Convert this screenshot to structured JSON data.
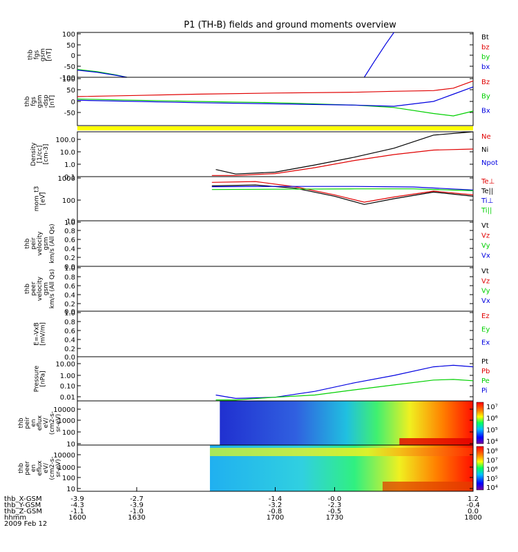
{
  "title": "P1 (TH-B) fields and ground moments overview",
  "colors": {
    "black": "#000000",
    "red": "#e00000",
    "green": "#00d000",
    "blue": "#0000e0",
    "yellow": "#ffff00"
  },
  "chart_data": [
    {
      "type": "line",
      "id": "p1",
      "ylabel": [
        "thb",
        "fgs",
        "gsm",
        "[nT]"
      ],
      "yticks": [
        "100",
        "50",
        "0",
        "-50",
        "-100"
      ],
      "ylim": [
        -100,
        100
      ],
      "legend": [
        {
          "label": "Bt",
          "color": "black"
        },
        {
          "label": "bz",
          "color": "red"
        },
        {
          "label": "by",
          "color": "green"
        },
        {
          "label": "bx",
          "color": "blue"
        }
      ],
      "series": [
        {
          "name": "by",
          "color": "green",
          "x": [
            1600,
            1610,
            1620,
            1625
          ],
          "y": [
            -65,
            -75,
            -90,
            -100
          ]
        },
        {
          "name": "bx",
          "color": "blue",
          "x": [
            1600,
            1610,
            1620,
            1625
          ],
          "y": [
            -68,
            -78,
            -92,
            -100
          ]
        },
        {
          "name": "bx",
          "color": "blue",
          "x": [
            1745,
            1750,
            1756,
            1760
          ],
          "y": [
            -100,
            -30,
            50,
            100
          ]
        }
      ]
    },
    {
      "type": "line",
      "id": "p2",
      "ylabel": [
        "thb",
        "fgs",
        "gsm",
        "-dsp",
        "[nT]"
      ],
      "yticks": [
        "100",
        "50",
        "0",
        "-50"
      ],
      "ylim": [
        -100,
        100
      ],
      "legend": [
        {
          "label": "Bz",
          "color": "red"
        },
        {
          "label": "By",
          "color": "green"
        },
        {
          "label": "Bx",
          "color": "blue"
        }
      ],
      "series": [
        {
          "name": "Bz",
          "color": "red",
          "x": [
            1600,
            1630,
            1660,
            1700,
            1740,
            1760,
            1780,
            1790,
            1800
          ],
          "y": [
            20,
            25,
            30,
            35,
            38,
            42,
            45,
            55,
            85
          ]
        },
        {
          "name": "By",
          "color": "green",
          "x": [
            1600,
            1630,
            1660,
            1700,
            1740,
            1760,
            1780,
            1790,
            1800
          ],
          "y": [
            10,
            5,
            0,
            -5,
            -15,
            -25,
            -50,
            -60,
            -40
          ]
        },
        {
          "name": "Bx",
          "color": "blue",
          "x": [
            1600,
            1630,
            1660,
            1700,
            1740,
            1760,
            1780,
            1790,
            1800
          ],
          "y": [
            5,
            0,
            -5,
            -10,
            -15,
            -20,
            0,
            30,
            60
          ]
        }
      ]
    },
    {
      "type": "line",
      "id": "p3",
      "log": true,
      "ylabel": [
        "Density",
        "[1/cc]",
        "[cm-3]"
      ],
      "yticks": [
        "100.0",
        "10.0",
        "1.0",
        "0.1"
      ],
      "ylim": [
        0.1,
        100
      ],
      "legend": [
        {
          "label": "Ne",
          "color": "red"
        },
        {
          "label": "Ni",
          "color": "black"
        },
        {
          "label": "Npot",
          "color": "blue"
        }
      ],
      "series": [
        {
          "name": "Ni",
          "color": "black",
          "x": [
            1670,
            1680,
            1700,
            1720,
            1740,
            1760,
            1780,
            1800
          ],
          "y": [
            0.3,
            0.15,
            0.2,
            0.6,
            2,
            8,
            60,
            110
          ]
        },
        {
          "name": "Ne",
          "color": "red",
          "x": [
            1668,
            1680,
            1700,
            1720,
            1740,
            1760,
            1780,
            1800
          ],
          "y": [
            0.12,
            0.12,
            0.16,
            0.4,
            1.2,
            3,
            6,
            7
          ]
        }
      ]
    },
    {
      "type": "line",
      "id": "p4",
      "log": true,
      "ylabel": [
        "mom_t3",
        "[eV]"
      ],
      "yticks": [
        "1000",
        "100",
        "10"
      ],
      "ylim": [
        10,
        1000
      ],
      "legend": [
        {
          "label": "Te⊥",
          "color": "red"
        },
        {
          "label": "Te||",
          "color": "black"
        },
        {
          "label": "Ti⊥",
          "color": "blue"
        },
        {
          "label": "Ti||",
          "color": "green"
        }
      ],
      "series": [
        {
          "name": "Te⊥",
          "color": "red",
          "x": [
            1668,
            1690,
            1710,
            1730,
            1745,
            1760,
            1780,
            1800
          ],
          "y": [
            550,
            600,
            350,
            150,
            70,
            120,
            220,
            150
          ]
        },
        {
          "name": "Te||",
          "color": "black",
          "x": [
            1668,
            1690,
            1710,
            1730,
            1745,
            1760,
            1780,
            1800
          ],
          "y": [
            380,
            420,
            300,
            130,
            55,
            100,
            200,
            130
          ]
        },
        {
          "name": "Ti⊥",
          "color": "blue",
          "x": [
            1668,
            1700,
            1740,
            1770,
            1800
          ],
          "y": [
            350,
            360,
            360,
            340,
            250
          ]
        },
        {
          "name": "Ti||",
          "color": "green",
          "x": [
            1668,
            1700,
            1740,
            1770,
            1800
          ],
          "y": [
            260,
            270,
            280,
            280,
            230
          ]
        }
      ]
    },
    {
      "type": "line",
      "id": "p5",
      "ylabel": [
        "thb",
        "peir",
        "velocity",
        "gsm",
        "km/s (All Qs)"
      ],
      "yticks": [
        "1.0",
        "0.8",
        "0.6",
        "0.4",
        "0.2",
        "0.0"
      ],
      "ylim": [
        0,
        1
      ],
      "legend": [
        {
          "label": "Vt",
          "color": "black"
        },
        {
          "label": "Vz",
          "color": "red"
        },
        {
          "label": "Vy",
          "color": "green"
        },
        {
          "label": "Vx",
          "color": "blue"
        }
      ],
      "series": []
    },
    {
      "type": "line",
      "id": "p6",
      "ylabel": [
        "thb",
        "peer",
        "velocity",
        "gsm",
        "km/s (All Qs)"
      ],
      "yticks": [
        "1.0",
        "0.8",
        "0.6",
        "0.4",
        "0.2",
        "0.0"
      ],
      "ylim": [
        0,
        1
      ],
      "legend": [
        {
          "label": "Vt",
          "color": "black"
        },
        {
          "label": "Vz",
          "color": "red"
        },
        {
          "label": "Vy",
          "color": "green"
        },
        {
          "label": "Vx",
          "color": "blue"
        }
      ],
      "series": []
    },
    {
      "type": "line",
      "id": "p7",
      "ylabel": [
        "E=-VxB",
        "[mV/m]"
      ],
      "yticks": [
        "1.0",
        "0.8",
        "0.6",
        "0.4",
        "0.2",
        "0.0"
      ],
      "ylim": [
        0,
        1
      ],
      "legend": [
        {
          "label": "Ez",
          "color": "red"
        },
        {
          "label": "Ey",
          "color": "green"
        },
        {
          "label": "Ex",
          "color": "blue"
        }
      ],
      "series": []
    },
    {
      "type": "line",
      "id": "p8",
      "log": true,
      "ylabel": [
        "Pressure",
        "[nPa]"
      ],
      "yticks": [
        "10.00",
        "1.00",
        "0.10",
        "0.01"
      ],
      "ylim": [
        0.005,
        20
      ],
      "legend": [
        {
          "label": "Pt",
          "color": "black"
        },
        {
          "label": "Pb",
          "color": "red"
        },
        {
          "label": "Pe",
          "color": "green"
        },
        {
          "label": "Pi",
          "color": "blue"
        }
      ],
      "series": [
        {
          "name": "Pi",
          "color": "blue",
          "x": [
            1670,
            1680,
            1700,
            1720,
            1740,
            1760,
            1780,
            1790,
            1800
          ],
          "y": [
            0.015,
            0.008,
            0.01,
            0.03,
            0.15,
            0.6,
            3,
            4,
            3
          ]
        },
        {
          "name": "Pe",
          "color": "green",
          "x": [
            1670,
            1680,
            1700,
            1720,
            1740,
            1760,
            1780,
            1790,
            1800
          ],
          "y": [
            0.006,
            0.006,
            0.01,
            0.015,
            0.04,
            0.1,
            0.25,
            0.28,
            0.22
          ]
        }
      ]
    },
    {
      "type": "heatmap",
      "id": "p9",
      "ylabel": [
        "thb",
        "peir",
        "en",
        "eflux",
        "eV/",
        "(cm2-s-",
        "sr-eV)"
      ],
      "yticks": [
        "10000",
        "1000",
        "100",
        "10"
      ],
      "colorbar": [
        "10⁷",
        "10⁶",
        "10⁵",
        "10⁴"
      ],
      "x_start": 1672
    },
    {
      "type": "heatmap",
      "id": "p10",
      "ylabel": [
        "thb",
        "peer",
        "en",
        "eflux",
        "eV/",
        "(cm2-s-",
        "sr-eV)"
      ],
      "yticks": [
        "10000",
        "1000",
        "100",
        "10"
      ],
      "colorbar": [
        "10⁸",
        "10⁷",
        "10⁶",
        "10⁵",
        "10⁴"
      ],
      "x_start": 1667
    }
  ],
  "x_axis": {
    "rows": [
      {
        "label": "thb_X-GSM",
        "values": [
          "-3.9",
          "-2.7",
          "-1.4",
          "-0.0",
          "1.2"
        ]
      },
      {
        "label": "thb_Y-GSM",
        "values": [
          "-4.3",
          "-3.9",
          "-3.2",
          "-2.3",
          "-0.4"
        ]
      },
      {
        "label": "thb_Z-GSM",
        "values": [
          "-1.1",
          "-1.0",
          "-0.8",
          "-0.5",
          "0.0"
        ]
      },
      {
        "label": "hhmm",
        "values": [
          "1600",
          "1630",
          "1700",
          "1730",
          "1800"
        ]
      }
    ],
    "date": "2009 Feb 12"
  }
}
